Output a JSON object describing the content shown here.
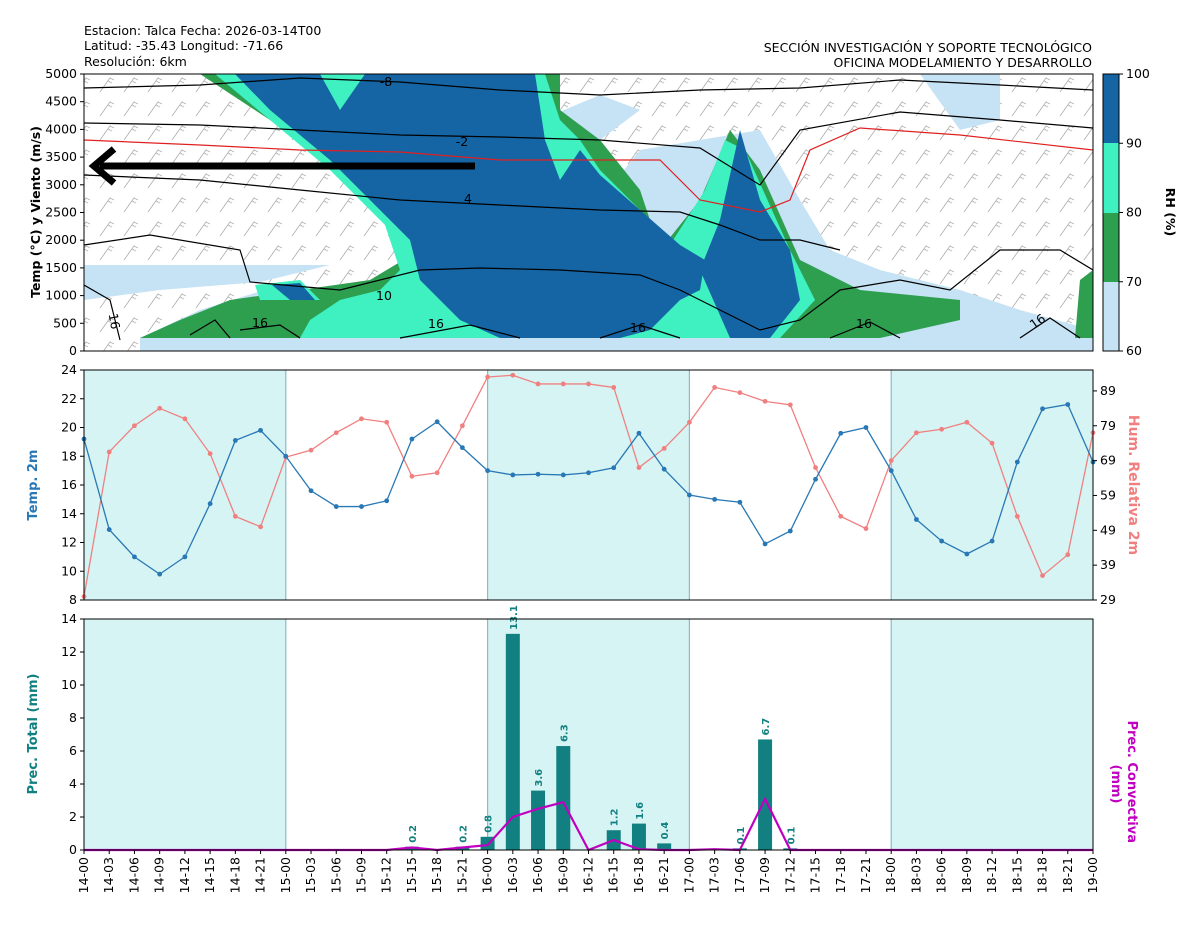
{
  "header": {
    "line1": "Estacion: Talca  Fecha: 2026-03-14T00",
    "line2": "Latitud: -35.43  Longitud: -71.66",
    "line3": "Resolución: 6km",
    "org1": "SECCIÓN INVESTIGACIÓN Y SOPORTE TECNOLÓGICO",
    "org2": "OFICINA MODELAMIENTO Y DESARROLLO"
  },
  "colors": {
    "rh60": "#c6e2f5",
    "rh70": "#2e9e4f",
    "rh80": "#3ff0c0",
    "rh90": "#1565a5",
    "temp": "#2878b5",
    "hum": "#f08080",
    "prec": "#128080",
    "conv": "#c000c0",
    "shade": "#d6f4f4"
  },
  "chart_data": [
    {
      "type": "heatmap",
      "title": "",
      "ylabel": "Temp (°C) y Viento (m/s)",
      "ylim": [
        0,
        5000
      ],
      "yticks": [
        "0",
        "500",
        "1000",
        "1500",
        "2000",
        "2500",
        "3000",
        "3500",
        "4000",
        "4500",
        "5000"
      ],
      "colorbar": {
        "label": "RH (%)",
        "ticks": [
          "60",
          "70",
          "80",
          "90",
          "100"
        ]
      },
      "contour_labels": [
        "-8",
        "-2",
        "4",
        "10",
        "16",
        "16",
        "16",
        "16",
        "16",
        "16"
      ],
      "arrow_direction": "left",
      "grid": false
    },
    {
      "type": "line",
      "ylabel_left": "Temp. 2m",
      "ylabel_right": "Hum. Relativa 2m",
      "ylim_left": [
        8,
        24
      ],
      "ylim_right": [
        29,
        95
      ],
      "yticks_left": [
        "8",
        "10",
        "12",
        "14",
        "16",
        "18",
        "20",
        "22",
        "24"
      ],
      "yticks_right": [
        "29",
        "39",
        "49",
        "59",
        "69",
        "79",
        "89"
      ],
      "x": [
        "14-00",
        "14-03",
        "14-06",
        "14-09",
        "14-12",
        "14-15",
        "14-18",
        "14-21",
        "15-00",
        "15-03",
        "15-06",
        "15-09",
        "15-12",
        "15-15",
        "15-18",
        "15-21",
        "16-00",
        "16-03",
        "16-06",
        "16-09",
        "16-12",
        "16-15",
        "16-18",
        "16-21",
        "17-00",
        "17-03",
        "17-06",
        "17-09",
        "17-12",
        "17-15",
        "17-18",
        "17-21",
        "18-00",
        "18-03",
        "18-06",
        "18-09",
        "18-12",
        "18-15",
        "18-18",
        "18-21",
        "19-00"
      ],
      "series": [
        {
          "name": "Temp. 2m",
          "values": [
            19.2,
            12.9,
            11.0,
            9.8,
            11.0,
            14.7,
            19.1,
            19.8,
            18.0,
            15.6,
            14.5,
            14.5,
            14.9,
            19.2,
            20.4,
            18.6,
            17.0,
            16.7,
            16.75,
            16.7,
            16.85,
            17.2,
            19.6,
            17.1,
            15.3,
            15.0,
            14.8,
            11.9,
            12.8,
            16.4,
            19.6,
            20.0,
            17.0,
            13.6,
            12.1,
            11.2,
            12.1,
            17.6,
            21.3,
            21.6,
            17.6
          ]
        },
        {
          "name": "Hum. Relativa 2m",
          "values": [
            30,
            71.5,
            79,
            84,
            81,
            71,
            53,
            50,
            70,
            72,
            77,
            81,
            80,
            64.5,
            65.5,
            79,
            93,
            93.5,
            91,
            91,
            91,
            90,
            67,
            72.5,
            80,
            90,
            88.5,
            86,
            85,
            67,
            53,
            49.5,
            69,
            77,
            78,
            80,
            74,
            53,
            36,
            42,
            77
          ]
        }
      ]
    },
    {
      "type": "bar",
      "ylabel_left": "Prec. Total (mm)",
      "ylabel_right": "Prec. Convectiva (mm)",
      "ylim": [
        0,
        14
      ],
      "yticks": [
        "0",
        "2",
        "4",
        "6",
        "8",
        "10",
        "12",
        "14"
      ],
      "x": [
        "14-00",
        "14-03",
        "14-06",
        "14-09",
        "14-12",
        "14-15",
        "14-18",
        "14-21",
        "15-00",
        "15-03",
        "15-06",
        "15-09",
        "15-12",
        "15-15",
        "15-18",
        "15-21",
        "16-00",
        "16-03",
        "16-06",
        "16-09",
        "16-12",
        "16-15",
        "16-18",
        "16-21",
        "17-00",
        "17-03",
        "17-06",
        "17-09",
        "17-12",
        "17-15",
        "17-18",
        "17-21",
        "18-00",
        "18-03",
        "18-06",
        "18-09",
        "18-12",
        "18-15",
        "18-18",
        "18-21",
        "19-00"
      ],
      "series": [
        {
          "name": "Prec. Total (mm)",
          "values": [
            0,
            0,
            0,
            0,
            0,
            0,
            0,
            0,
            0,
            0,
            0,
            0,
            0,
            0.2,
            0,
            0.2,
            0.8,
            13.1,
            3.6,
            6.3,
            0,
            1.2,
            1.6,
            0.4,
            0,
            0,
            0.1,
            6.7,
            0.1,
            0,
            0,
            0,
            0,
            0,
            0,
            0,
            0,
            0,
            0,
            0,
            0
          ]
        },
        {
          "name": "Prec. Convectiva (mm)",
          "values": [
            0,
            0,
            0,
            0,
            0,
            0,
            0,
            0,
            0,
            0,
            0,
            0,
            0,
            0.15,
            0,
            0.15,
            0.3,
            2.0,
            2.5,
            2.9,
            0,
            0.6,
            0.05,
            0,
            0,
            0.05,
            0,
            3.1,
            0,
            0,
            0,
            0,
            0,
            0,
            0,
            0,
            0,
            0,
            0,
            0,
            0
          ]
        }
      ],
      "bar_labels": [
        "0.2",
        "0.2",
        "0.8",
        "13.1",
        "3.6",
        "6.3",
        "1.2",
        "1.6",
        "0.4",
        "0.1",
        "6.7",
        "0.1"
      ],
      "shaded_days": [
        "14",
        "16",
        "18"
      ]
    }
  ]
}
